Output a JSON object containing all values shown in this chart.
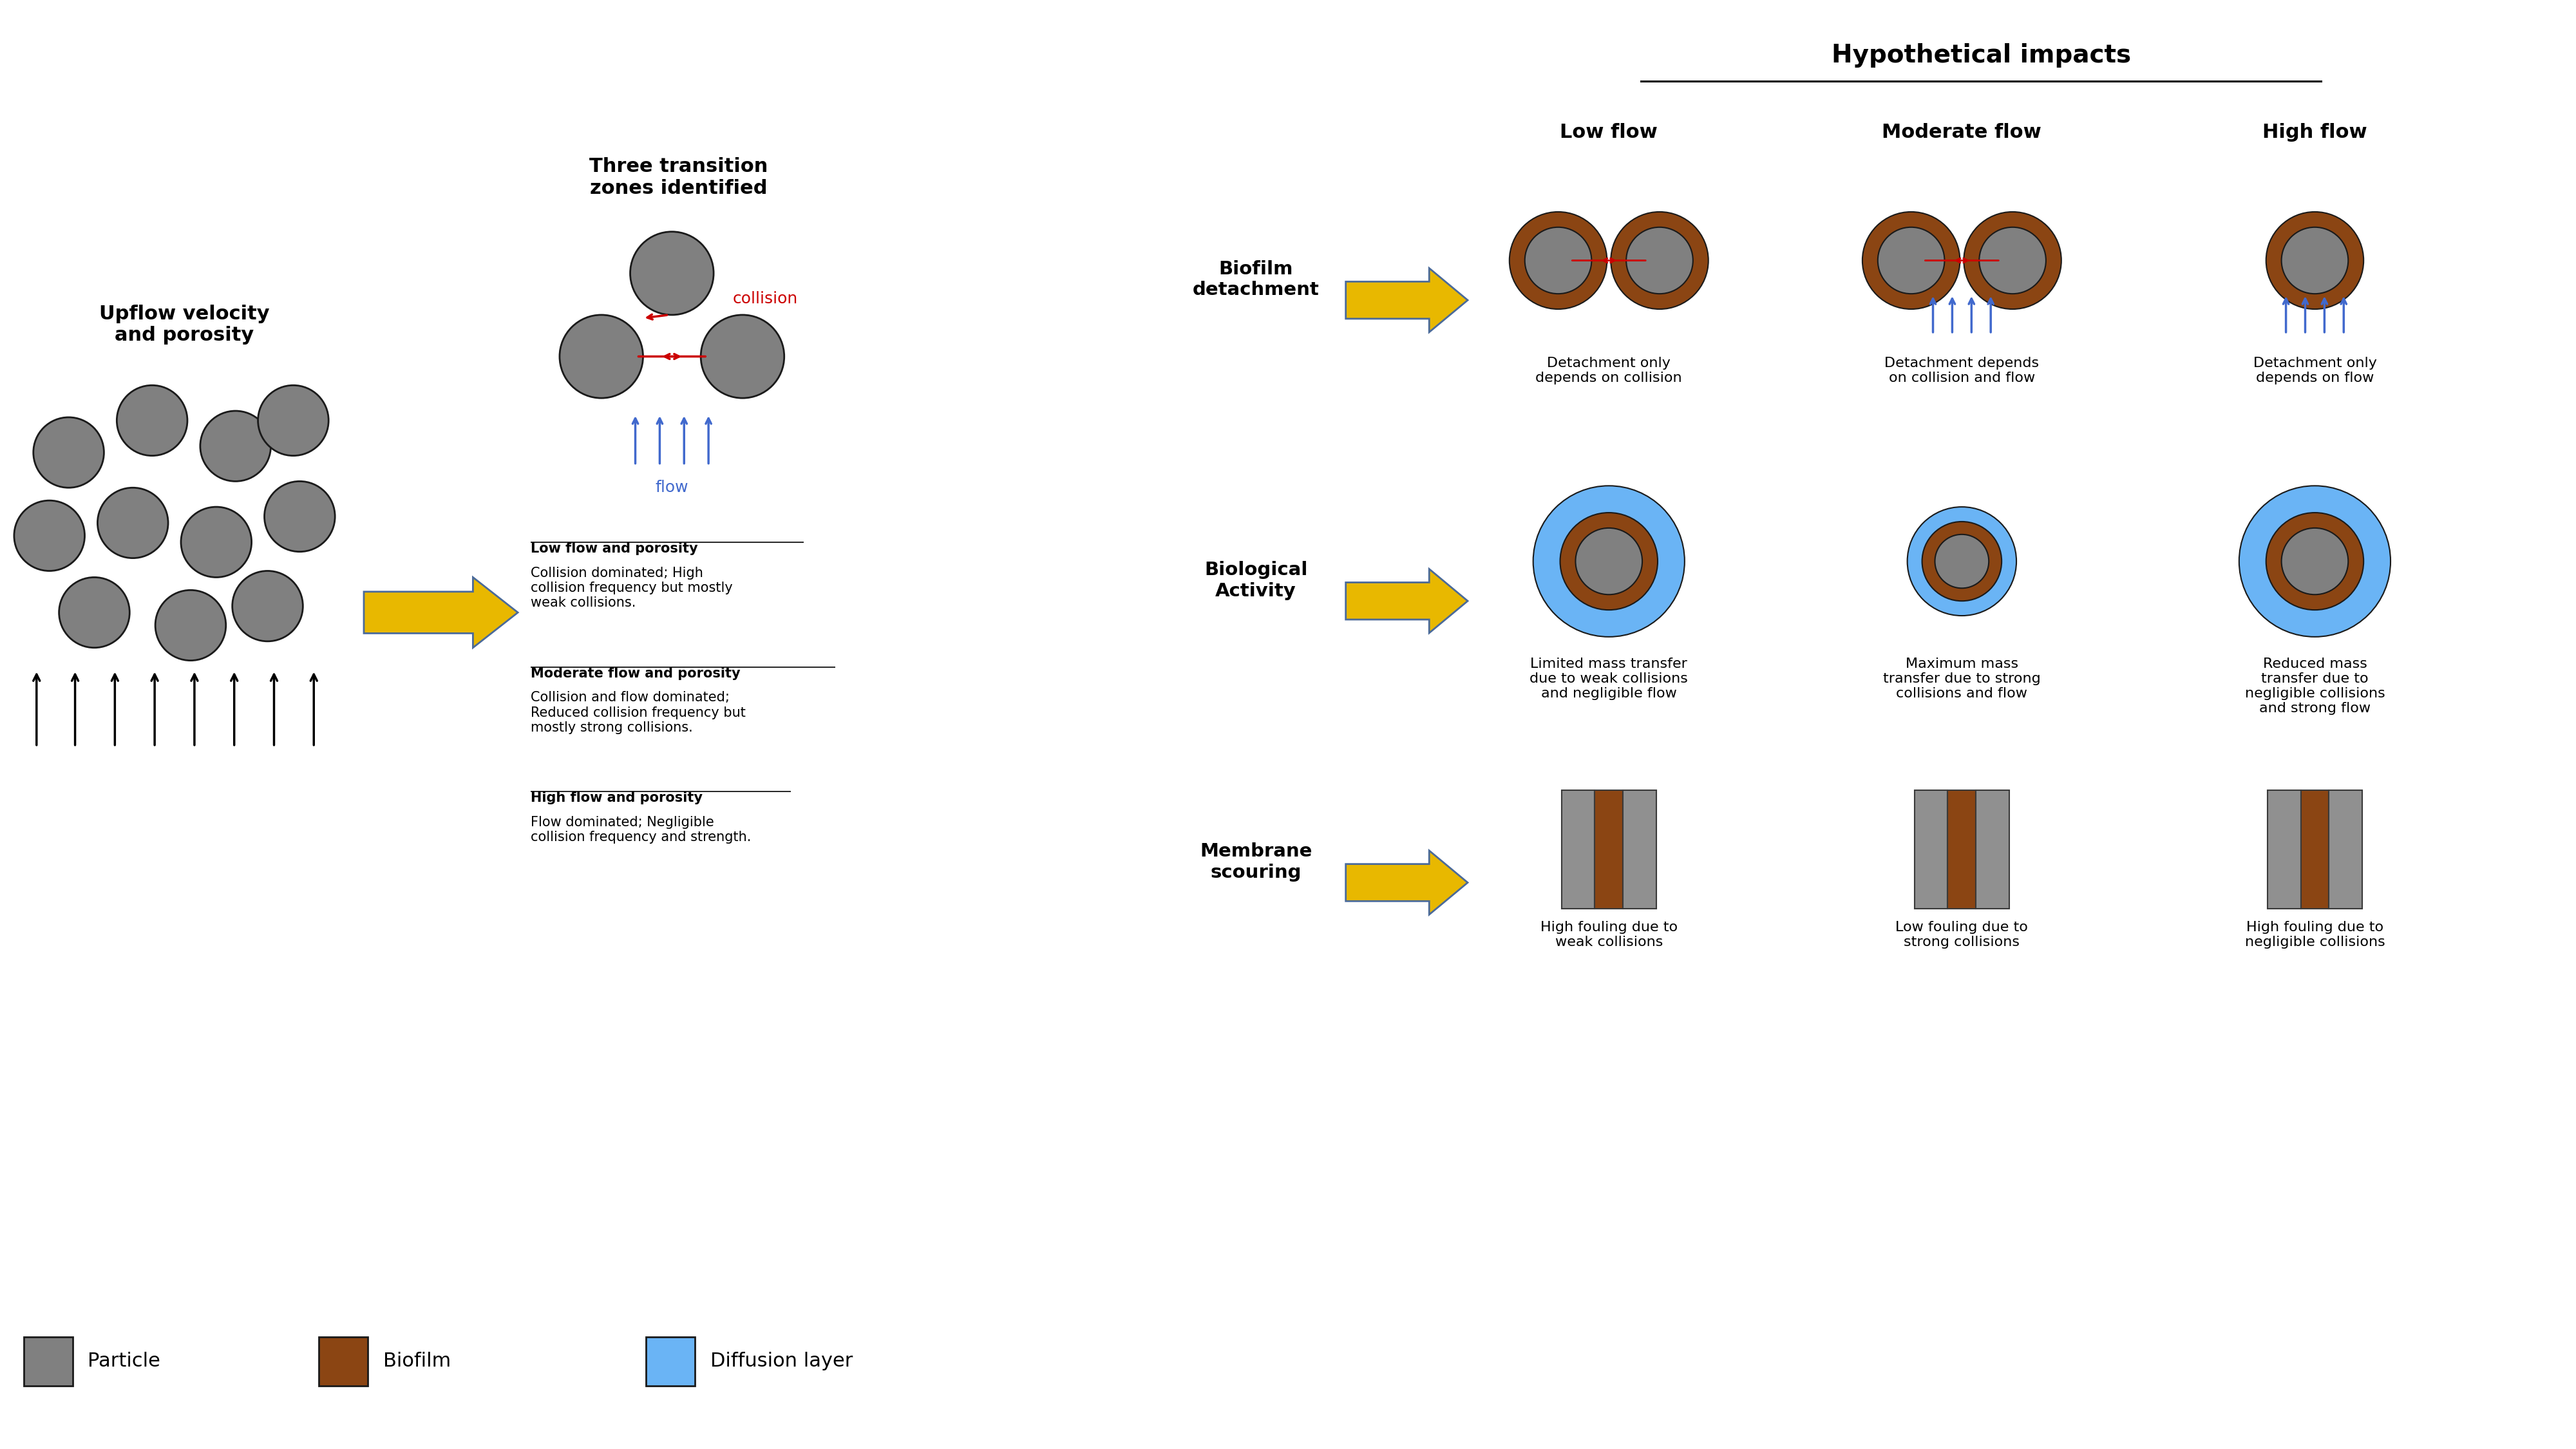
{
  "title": "Hypothetical impacts",
  "bg_color": "#ffffff",
  "particle_color": "#808080",
  "particle_edge": "#1a1a1a",
  "biofilm_color": "#8B4513",
  "diffusion_color": "#6ab4f5",
  "arrow_color": "#E8B800",
  "arrow_edge": "#3a5a8a",
  "flow_arrow_color": "#4169CD",
  "collision_arrow_color": "#CC0000",
  "membrane_gray": "#909090",
  "upflow_text": "Upflow velocity\nand porosity",
  "three_zones_text": "Three transition\nzones identified",
  "collision_label": "collision",
  "flow_label": "flow",
  "low_flow_title": "Low flow",
  "moderate_flow_title": "Moderate flow",
  "high_flow_title": "High flow",
  "biofilm_detachment": "Biofilm\ndetachment",
  "biological_activity": "Biological\nActivity",
  "membrane_scouring": "Membrane\nscouring",
  "det_low": "Detachment only\ndepends on collision",
  "det_mod": "Detachment depends\non collision and flow",
  "det_high": "Detachment only\ndepends on flow",
  "bio_low": "Limited mass transfer\ndue to weak collisions\nand negligible flow",
  "bio_mod": "Maximum mass\ntransfer due to strong\ncollisions and flow",
  "bio_high": "Reduced mass\ntransfer due to\nnegligible collisions\nand strong flow",
  "mem_low": "High fouling due to\nweak collisions",
  "mem_mod": "Low fouling due to\nstrong collisions",
  "mem_high": "High fouling due to\nnegligible collisions",
  "low_flow_porosity_title": "Low flow and porosity",
  "low_flow_porosity_body": "Collision dominated; High\ncollision frequency but mostly\nweak collisions.",
  "mod_flow_porosity_title": "Moderate flow and porosity",
  "mod_flow_porosity_body": "Collision and flow dominated;\nReduced collision frequency but\nmostly strong collisions.",
  "high_flow_porosity_title": "High flow and porosity",
  "high_flow_porosity_body": "Flow dominated; Negligible\ncollision frequency and strength.",
  "legend_particle": "Particle",
  "legend_biofilm": "Biofilm",
  "legend_diffusion": "Diffusion layer"
}
